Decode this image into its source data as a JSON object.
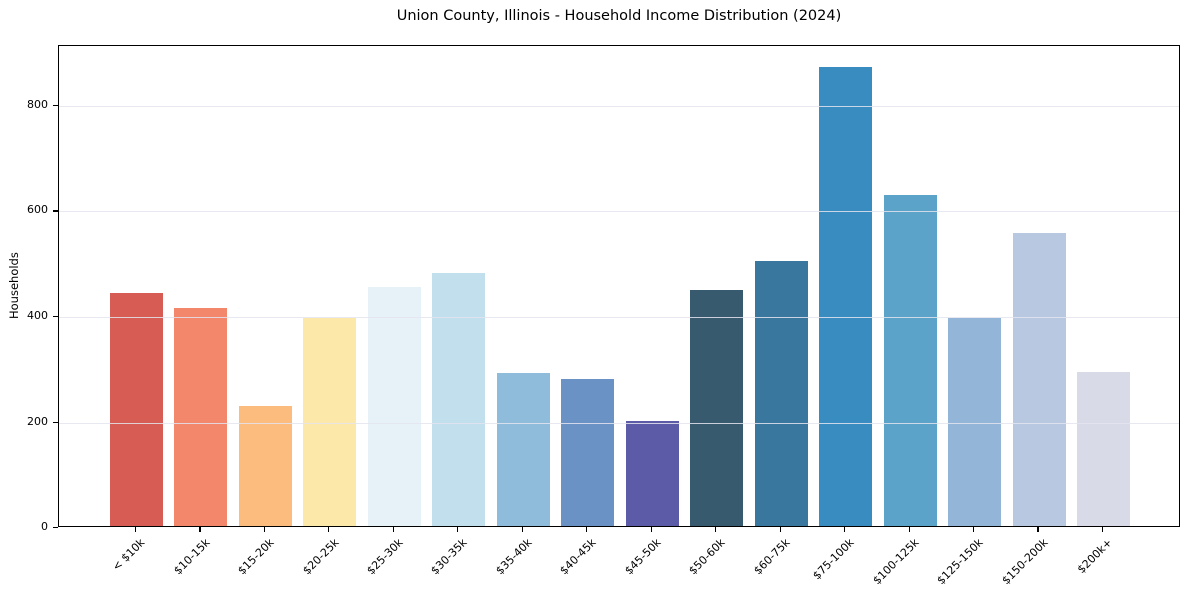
{
  "chart_data": {
    "type": "bar",
    "title": "Union County, Illinois - Household Income Distribution (2024)",
    "xlabel": "",
    "ylabel": "Households",
    "categories": [
      "< $10k",
      "$10-15k",
      "$15-20k",
      "$20-25k",
      "$25-30k",
      "$30-35k",
      "$35-40k",
      "$40-45k",
      "$45-50k",
      "$50-60k",
      "$60-75k",
      "$75-100k",
      "$100-125k",
      "$125-150k",
      "$150-200k",
      "$200k+"
    ],
    "values": [
      441,
      413,
      227,
      395,
      453,
      480,
      290,
      279,
      199,
      447,
      502,
      870,
      627,
      394,
      555,
      292
    ],
    "bar_colors": [
      "#d65c54",
      "#f2876c",
      "#fcbc7d",
      "#fce9a9",
      "#e7f1f8",
      "#c1dfed",
      "#90bcdc",
      "#6a92c5",
      "#5c5ba8",
      "#385a6e",
      "#39779e",
      "#398cc0",
      "#5ba3c9",
      "#93b5d8",
      "#b7c8e0",
      "#d8dae8"
    ],
    "yticks": [
      0,
      200,
      400,
      600,
      800
    ],
    "ylim": [
      0,
      913.5
    ],
    "grid": "horizontal",
    "grid_color": "#e8e8ee",
    "background": "#ffffff",
    "spine_color": "#000000",
    "legend": "none"
  }
}
